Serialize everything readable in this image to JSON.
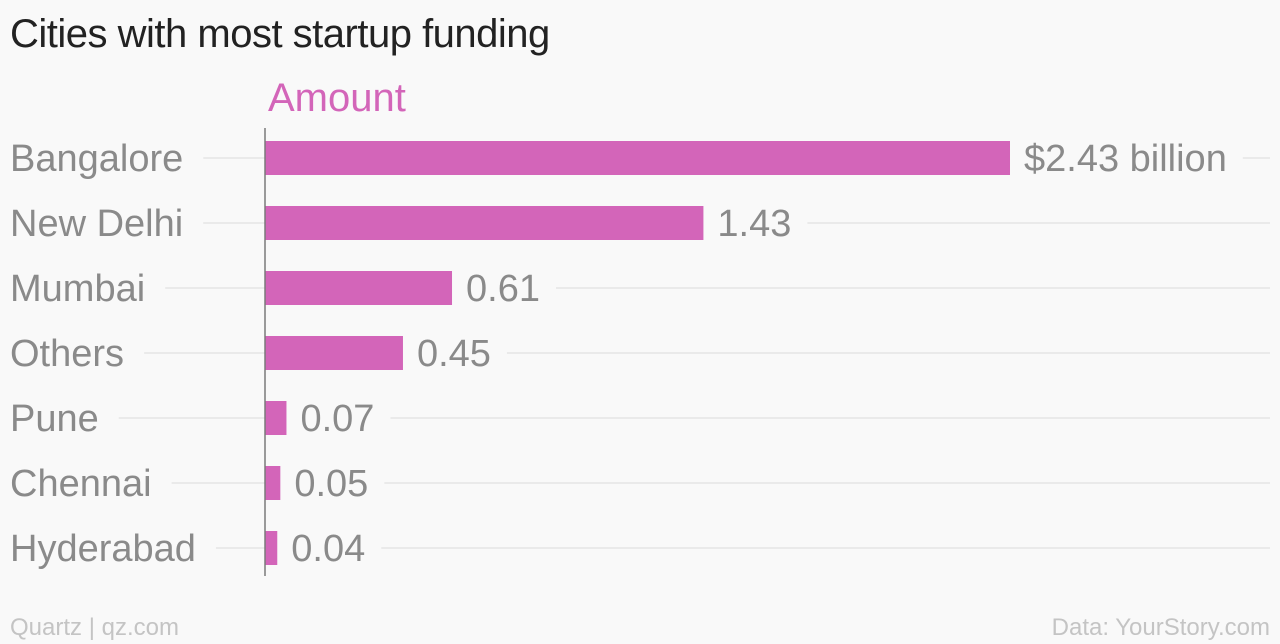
{
  "chart_data": {
    "type": "bar",
    "orientation": "horizontal",
    "title": "Cities with most startup funding",
    "series": [
      {
        "name": "Amount",
        "color": "#d365b9",
        "values": [
          2.43,
          1.43,
          0.61,
          0.45,
          0.07,
          0.05,
          0.04
        ]
      }
    ],
    "categories": [
      "Bangalore",
      "New Delhi",
      "Mumbai",
      "Others",
      "Pune",
      "Chennai",
      "Hyderabad"
    ],
    "value_labels": [
      "$2.43 billion",
      "1.43",
      "0.61",
      "0.45",
      "0.07",
      "0.05",
      "0.04"
    ],
    "xlim": [
      0,
      2.43
    ],
    "grid": true,
    "legend": "top-left"
  },
  "footer": {
    "source_left": "Quartz | qz.com",
    "source_right": "Data: YourStory.com"
  },
  "colors": {
    "bar": "#d365b9",
    "text_muted": "#8a8a8a",
    "title": "#222222",
    "gridline": "#e6e6e6",
    "axis": "#7a7a7a"
  }
}
